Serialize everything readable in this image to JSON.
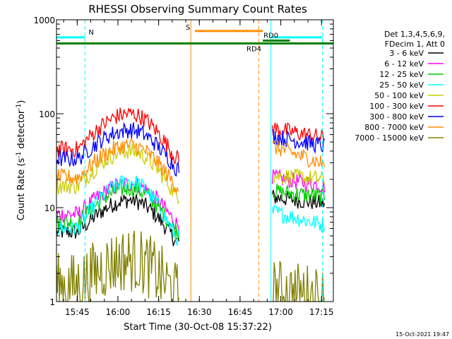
{
  "chart_data": {
    "type": "line",
    "title": "RHESSI Observing Summary Count Rates",
    "xlabel": "Start Time (30-Oct-08 15:37:22)",
    "ylabel_main": "Count Rate (s",
    "ylabel_sup1": "-1",
    "ylabel_mid": " detector",
    "ylabel_sup2": "-1",
    "ylabel_end": ")",
    "y_scale": "log",
    "ylim": [
      1,
      1000
    ],
    "xlim_min": [
      0,
      102
    ],
    "y_ticks": [
      {
        "value": 1,
        "label": "1"
      },
      {
        "value": 10,
        "label": "10"
      },
      {
        "value": 100,
        "label": "100"
      },
      {
        "value": 1000,
        "label": "1000"
      }
    ],
    "x_ticks": [
      {
        "value": 7.63,
        "label": "15:45"
      },
      {
        "value": 22.63,
        "label": "16:00"
      },
      {
        "value": 37.63,
        "label": "16:15"
      },
      {
        "value": 52.63,
        "label": "16:30"
      },
      {
        "value": 67.63,
        "label": "16:45"
      },
      {
        "value": 82.63,
        "label": "17:00"
      },
      {
        "value": 97.63,
        "label": "17:15"
      }
    ],
    "footer": "15-Oct-2021 19:47",
    "legend_header": [
      "Det 1,3,4,5,6,9,",
      "FDecim 1, Att 0"
    ],
    "legend_position": "right",
    "series": [
      {
        "name": "3 - 6 keV",
        "color": "#000000",
        "base": 5.5,
        "peak": 12,
        "post": 13,
        "postEnd": 11
      },
      {
        "name": "6 - 12 keV",
        "color": "#ff00ff",
        "base": 8.5,
        "peak": 18,
        "post": 21,
        "postEnd": 17
      },
      {
        "name": "12 - 25 keV",
        "color": "#00cc00",
        "base": 7,
        "peak": 16,
        "post": 15,
        "postEnd": 13
      },
      {
        "name": "25 - 50 keV",
        "color": "#00ffff",
        "base": 6,
        "peak": 19,
        "post": 9,
        "postEnd": 6.5
      },
      {
        "name": "50 - 100 keV",
        "color": "#cccc00",
        "base": 17,
        "peak": 40,
        "post": 22,
        "postEnd": 20
      },
      {
        "name": "100 - 300 keV",
        "color": "#ff0000",
        "base": 42,
        "peak": 100,
        "post": 70,
        "postEnd": 55
      },
      {
        "name": "300 - 800 keV",
        "color": "#0000ff",
        "base": 33,
        "peak": 67,
        "post": 58,
        "postEnd": 45
      },
      {
        "name": "800 - 7000 keV",
        "color": "#ff8c00",
        "base": 21,
        "peak": 46,
        "post": 45,
        "postEnd": 29
      },
      {
        "name": "7000 - 15000 keV",
        "color": "#808000",
        "base": 1.5,
        "peak": 2.8,
        "post": 1.3,
        "postEnd": 1.1
      }
    ],
    "segments": [
      [
        0,
        45.5
      ],
      [
        79.5,
        99
      ]
    ],
    "rise_start": 8,
    "peak_time": 27,
    "fall_end": 44,
    "annotations": {
      "N_label": "N",
      "S_label": "S",
      "RD0_label": "RD0",
      "RD4_label": "RD4",
      "night": [
        [
          0,
          10.5
        ],
        [
          79,
          98
        ]
      ],
      "saa": [
        [
          51,
          76
        ]
      ],
      "attenuator_time": 49.5,
      "dashed_orange_time": 74.5
    },
    "colors": {
      "night": "#00ffff",
      "saa": "#ff8c00",
      "rd": "#008000",
      "frame": "#000000"
    }
  }
}
